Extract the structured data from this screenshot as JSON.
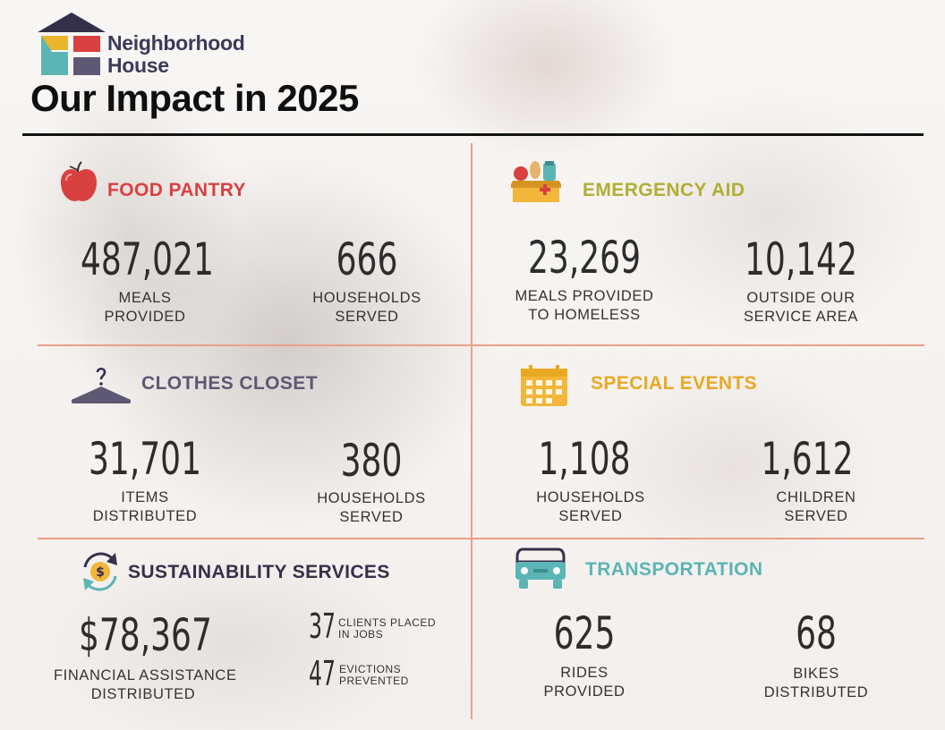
{
  "logo": {
    "line1": "Neighborhood",
    "line2": "House"
  },
  "title": "Our Impact in 2025",
  "colors": {
    "food": "#d94040",
    "emergency": "#b1ae35",
    "clothes": "#5d5873",
    "events": "#e7a923",
    "sustain": "#35304a",
    "transport": "#5bb5b4",
    "divider": "#e9a088"
  },
  "food_pantry": {
    "title": "FOOD PANTRY",
    "icon": "apple-icon",
    "stat1": {
      "value": "487,021",
      "label1": "MEALS",
      "label2": "PROVIDED"
    },
    "stat2": {
      "value": "666",
      "label1": "HOUSEHOLDS",
      "label2": "SERVED"
    }
  },
  "emergency_aid": {
    "title": "EMERGENCY AID",
    "icon": "aid-box-icon",
    "stat1": {
      "value": "23,269",
      "label1": "MEALS PROVIDED",
      "label2": "TO HOMELESS"
    },
    "stat2": {
      "value": "10,142",
      "label1": "OUTSIDE OUR",
      "label2": "SERVICE AREA"
    }
  },
  "clothes_closet": {
    "title": "CLOTHES CLOSET",
    "icon": "hanger-icon",
    "stat1": {
      "value": "31,701",
      "label1": "ITEMS",
      "label2": "DISTRIBUTED"
    },
    "stat2": {
      "value": "380",
      "label1": "HOUSEHOLDS",
      "label2": "SERVED"
    }
  },
  "special_events": {
    "title": "SPECIAL EVENTS",
    "icon": "calendar-icon",
    "stat1": {
      "value": "1,108",
      "label1": "HOUSEHOLDS",
      "label2": "SERVED"
    },
    "stat2": {
      "value": "1,612",
      "label1": "CHILDREN",
      "label2": "SERVED"
    }
  },
  "sustainability": {
    "title": "SUSTAINABILITY SERVICES",
    "icon": "money-cycle-icon",
    "stat1": {
      "value": "$78,367",
      "label1": "FINANCIAL ASSISTANCE",
      "label2": "DISTRIBUTED"
    },
    "jobs": {
      "value": "37",
      "label1": "CLIENTS PLACED",
      "label2": "IN JOBS"
    },
    "evictions": {
      "value": "47",
      "label1": "EVICTIONS",
      "label2": "PREVENTED"
    }
  },
  "transportation": {
    "title": "TRANSPORTATION",
    "icon": "car-icon",
    "stat1": {
      "value": "625",
      "label1": "RIDES",
      "label2": "PROVIDED"
    },
    "stat2": {
      "value": "68",
      "label1": "BIKES",
      "label2": "DISTRIBUTED"
    }
  }
}
